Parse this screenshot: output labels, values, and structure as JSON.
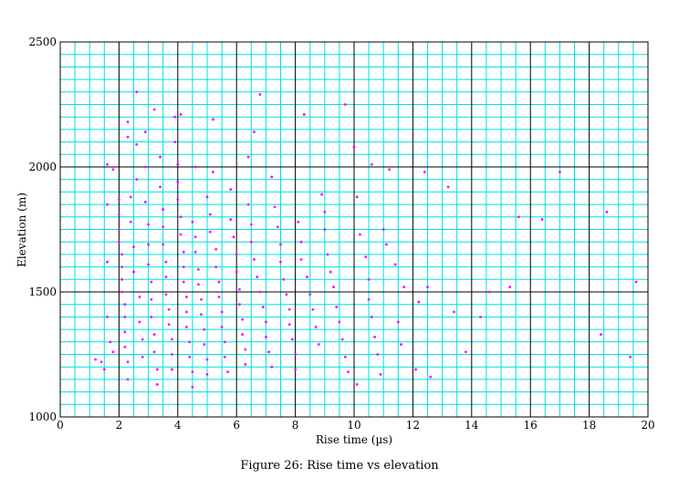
{
  "caption": "Figure 26: Rise time vs elevation",
  "colors": {
    "minor_grid": "#00e0e0",
    "major_grid": "#000000",
    "points": "#ff00ff",
    "background": "#ffffff"
  },
  "chart_data": {
    "type": "scatter",
    "title": "",
    "xlabel": "Rise time (µs)",
    "ylabel": "Elevation (m)",
    "xlim": [
      0,
      20
    ],
    "ylim": [
      1000,
      2500
    ],
    "x_ticks": [
      "0",
      "2",
      "4",
      "6",
      "8",
      "10",
      "12",
      "14",
      "16",
      "18",
      "20"
    ],
    "y_ticks": [
      "1000",
      "1500",
      "2000",
      "2500"
    ],
    "grid": true,
    "legend": "none",
    "series": [
      {
        "points": [
          [
            1.2,
            1230
          ],
          [
            1.4,
            1220
          ],
          [
            1.5,
            1190
          ],
          [
            1.6,
            2010
          ],
          [
            1.6,
            1850
          ],
          [
            1.6,
            1620
          ],
          [
            1.6,
            1400
          ],
          [
            1.7,
            1300
          ],
          [
            1.8,
            1260
          ],
          [
            1.8,
            1990
          ],
          [
            2.0,
            1870
          ],
          [
            2.0,
            1810
          ],
          [
            2.0,
            1750
          ],
          [
            2.0,
            1700
          ],
          [
            2.1,
            1650
          ],
          [
            2.1,
            1600
          ],
          [
            2.1,
            1550
          ],
          [
            2.1,
            1500
          ],
          [
            2.2,
            1450
          ],
          [
            2.2,
            1400
          ],
          [
            2.2,
            1340
          ],
          [
            2.2,
            1280
          ],
          [
            2.3,
            1220
          ],
          [
            2.3,
            1150
          ],
          [
            2.3,
            2180
          ],
          [
            2.3,
            2120
          ],
          [
            2.4,
            1880
          ],
          [
            2.4,
            1780
          ],
          [
            2.5,
            1680
          ],
          [
            2.5,
            1580
          ],
          [
            2.6,
            2300
          ],
          [
            2.6,
            2090
          ],
          [
            2.6,
            1950
          ],
          [
            2.7,
            1480
          ],
          [
            2.7,
            1380
          ],
          [
            2.8,
            1310
          ],
          [
            2.8,
            1240
          ],
          [
            2.9,
            2140
          ],
          [
            2.9,
            2000
          ],
          [
            2.9,
            1860
          ],
          [
            3.0,
            1770
          ],
          [
            3.0,
            1690
          ],
          [
            3.0,
            1610
          ],
          [
            3.1,
            1540
          ],
          [
            3.1,
            1470
          ],
          [
            3.1,
            1400
          ],
          [
            3.2,
            1330
          ],
          [
            3.2,
            1260
          ],
          [
            3.2,
            2230
          ],
          [
            3.3,
            1190
          ],
          [
            3.3,
            1130
          ],
          [
            3.4,
            2040
          ],
          [
            3.4,
            1920
          ],
          [
            3.5,
            1830
          ],
          [
            3.5,
            1760
          ],
          [
            3.5,
            1690
          ],
          [
            3.6,
            1620
          ],
          [
            3.6,
            1560
          ],
          [
            3.6,
            1490
          ],
          [
            3.7,
            1430
          ],
          [
            3.7,
            1370
          ],
          [
            3.8,
            1310
          ],
          [
            3.8,
            1250
          ],
          [
            3.8,
            1190
          ],
          [
            3.9,
            2200
          ],
          [
            3.9,
            2100
          ],
          [
            4.0,
            2010
          ],
          [
            4.0,
            1940
          ],
          [
            4.0,
            1870
          ],
          [
            4.1,
            2210
          ],
          [
            4.1,
            1800
          ],
          [
            4.1,
            1730
          ],
          [
            4.2,
            1660
          ],
          [
            4.2,
            1600
          ],
          [
            4.2,
            1540
          ],
          [
            4.3,
            1480
          ],
          [
            4.3,
            1420
          ],
          [
            4.3,
            1360
          ],
          [
            4.4,
            1300
          ],
          [
            4.4,
            1240
          ],
          [
            4.5,
            1180
          ],
          [
            4.5,
            1120
          ],
          [
            4.5,
            1780
          ],
          [
            4.6,
            1720
          ],
          [
            4.6,
            1660
          ],
          [
            4.6,
            2000
          ],
          [
            4.7,
            1590
          ],
          [
            4.7,
            1530
          ],
          [
            4.8,
            1470
          ],
          [
            4.8,
            1410
          ],
          [
            4.9,
            1350
          ],
          [
            4.9,
            1290
          ],
          [
            5.0,
            1230
          ],
          [
            5.0,
            1170
          ],
          [
            5.0,
            1880
          ],
          [
            5.1,
            1810
          ],
          [
            5.1,
            1740
          ],
          [
            5.2,
            2190
          ],
          [
            5.2,
            1980
          ],
          [
            5.3,
            1670
          ],
          [
            5.3,
            1600
          ],
          [
            5.4,
            1540
          ],
          [
            5.4,
            1480
          ],
          [
            5.5,
            1420
          ],
          [
            5.5,
            1360
          ],
          [
            5.6,
            1300
          ],
          [
            5.6,
            1240
          ],
          [
            5.7,
            1180
          ],
          [
            5.8,
            1910
          ],
          [
            5.8,
            1790
          ],
          [
            5.9,
            1720
          ],
          [
            6.0,
            1650
          ],
          [
            6.0,
            1580
          ],
          [
            6.1,
            1510
          ],
          [
            6.1,
            1450
          ],
          [
            6.2,
            1390
          ],
          [
            6.2,
            1330
          ],
          [
            6.3,
            1270
          ],
          [
            6.3,
            1210
          ],
          [
            6.4,
            2040
          ],
          [
            6.4,
            1850
          ],
          [
            6.5,
            1770
          ],
          [
            6.5,
            1700
          ],
          [
            6.6,
            2140
          ],
          [
            6.6,
            1630
          ],
          [
            6.7,
            1560
          ],
          [
            6.8,
            2290
          ],
          [
            6.8,
            1500
          ],
          [
            6.9,
            1440
          ],
          [
            7.0,
            1380
          ],
          [
            7.0,
            1320
          ],
          [
            7.1,
            1260
          ],
          [
            7.2,
            1200
          ],
          [
            7.2,
            1960
          ],
          [
            7.3,
            1840
          ],
          [
            7.4,
            1760
          ],
          [
            7.5,
            1690
          ],
          [
            7.5,
            1620
          ],
          [
            7.6,
            1550
          ],
          [
            7.7,
            1490
          ],
          [
            7.8,
            1430
          ],
          [
            7.8,
            1370
          ],
          [
            7.9,
            1310
          ],
          [
            8.0,
            1250
          ],
          [
            8.0,
            1190
          ],
          [
            8.1,
            1780
          ],
          [
            8.2,
            1700
          ],
          [
            8.2,
            1630
          ],
          [
            8.3,
            2210
          ],
          [
            8.4,
            1560
          ],
          [
            8.5,
            1490
          ],
          [
            8.6,
            1430
          ],
          [
            8.7,
            1360
          ],
          [
            8.8,
            1290
          ],
          [
            8.9,
            1890
          ],
          [
            9.0,
            1820
          ],
          [
            9.0,
            1750
          ],
          [
            9.1,
            1650
          ],
          [
            9.2,
            1580
          ],
          [
            9.3,
            1520
          ],
          [
            9.4,
            1440
          ],
          [
            9.5,
            1380
          ],
          [
            9.6,
            1310
          ],
          [
            9.7,
            1240
          ],
          [
            9.7,
            2250
          ],
          [
            9.8,
            1180
          ],
          [
            10.0,
            2080
          ],
          [
            10.1,
            1880
          ],
          [
            10.1,
            1130
          ],
          [
            10.2,
            1730
          ],
          [
            10.4,
            1640
          ],
          [
            10.5,
            1550
          ],
          [
            10.5,
            1470
          ],
          [
            10.6,
            1400
          ],
          [
            10.6,
            2010
          ],
          [
            10.7,
            1320
          ],
          [
            10.8,
            1250
          ],
          [
            10.9,
            1170
          ],
          [
            11.0,
            1750
          ],
          [
            11.1,
            1690
          ],
          [
            11.2,
            1990
          ],
          [
            11.4,
            1610
          ],
          [
            11.5,
            1380
          ],
          [
            11.6,
            1290
          ],
          [
            11.7,
            1520
          ],
          [
            12.1,
            1190
          ],
          [
            12.2,
            1460
          ],
          [
            12.4,
            1980
          ],
          [
            12.5,
            1520
          ],
          [
            12.6,
            1160
          ],
          [
            13.2,
            1920
          ],
          [
            13.4,
            1420
          ],
          [
            13.8,
            1260
          ],
          [
            14.3,
            1400
          ],
          [
            14.6,
            1500
          ],
          [
            15.3,
            1520
          ],
          [
            15.6,
            1800
          ],
          [
            16.4,
            1790
          ],
          [
            17.0,
            1980
          ],
          [
            18.4,
            1330
          ],
          [
            18.6,
            1820
          ],
          [
            19.4,
            1240
          ],
          [
            19.6,
            1540
          ]
        ]
      }
    ]
  }
}
